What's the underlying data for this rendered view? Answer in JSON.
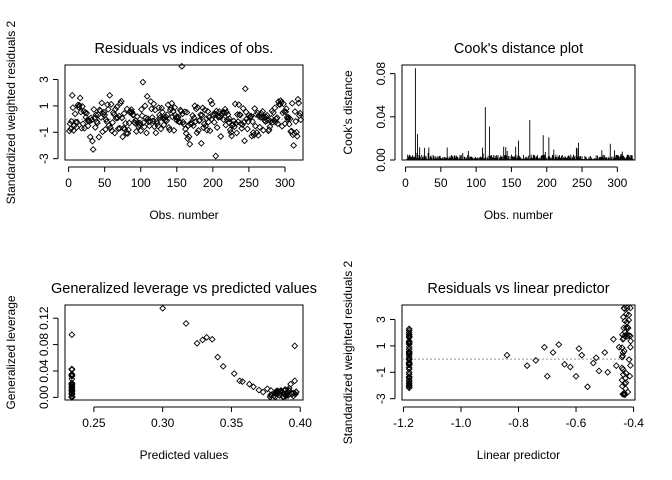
{
  "chart_data": [
    {
      "type": "scatter",
      "title": "Residuals vs indices of obs.",
      "xlabel": "Obs. number",
      "ylabel": "Standardized weighted residuals 2",
      "xlim": [
        -5,
        325
      ],
      "ylim": [
        -3.1,
        4.1
      ],
      "xticks": [
        0,
        50,
        100,
        150,
        200,
        250,
        300
      ],
      "yticks": [
        -3,
        -1,
        1,
        3
      ],
      "hline": 0,
      "n_points": 322,
      "sample_points": [
        [
          1,
          -0.9
        ],
        [
          5,
          1.8
        ],
        [
          9,
          0.4
        ],
        [
          16,
          1.6
        ],
        [
          34,
          -2.3
        ],
        [
          57,
          1.8
        ],
        [
          103,
          2.8
        ],
        [
          157,
          4.0
        ],
        [
          168,
          -1.9
        ],
        [
          204,
          -2.8
        ],
        [
          245,
          2.3
        ],
        [
          294,
          1.4
        ],
        [
          312,
          -2.0
        ],
        [
          318,
          1.5
        ]
      ],
      "grid": false,
      "legend": "none"
    },
    {
      "type": "bar",
      "title": "Cook's distance plot",
      "xlabel": "Obs. number",
      "ylabel": "Cook's distance",
      "xlim": [
        -5,
        325
      ],
      "ylim": [
        0,
        0.088
      ],
      "xticks": [
        0,
        50,
        100,
        150,
        200,
        250,
        300
      ],
      "yticks": [
        0.0,
        0.04,
        0.08
      ],
      "ytick_labels": [
        "0.00",
        "0.04",
        "0.08"
      ],
      "notable_values": [
        [
          14,
          0.085
        ],
        [
          17,
          0.024
        ],
        [
          113,
          0.049
        ],
        [
          119,
          0.031
        ],
        [
          142,
          0.012
        ],
        [
          160,
          0.018
        ],
        [
          176,
          0.037
        ],
        [
          195,
          0.023
        ],
        [
          203,
          0.021
        ],
        [
          245,
          0.016
        ],
        [
          290,
          0.015
        ]
      ],
      "baseline_level": 0.002,
      "grid": false,
      "legend": "none"
    },
    {
      "type": "scatter",
      "title": "Generalized leverage vs predicted values",
      "xlabel": "Predicted values",
      "ylabel": "Generalized leverage",
      "xlim": [
        0.229,
        0.402
      ],
      "ylim": [
        -0.004,
        0.14
      ],
      "xticks": [
        0.25,
        0.3,
        0.35,
        0.4
      ],
      "xtick_labels": [
        "0.25",
        "0.30",
        "0.35",
        "0.40"
      ],
      "yticks": [
        0.0,
        0.04,
        0.08,
        0.12
      ],
      "ytick_labels": [
        "0.00",
        "0.04",
        "0.08",
        "0.12"
      ],
      "points": [
        [
          0.3,
          0.135
        ],
        [
          0.317,
          0.112
        ],
        [
          0.325,
          0.082
        ],
        [
          0.329,
          0.087
        ],
        [
          0.332,
          0.091
        ],
        [
          0.336,
          0.088
        ],
        [
          0.34,
          0.061
        ],
        [
          0.344,
          0.047
        ],
        [
          0.352,
          0.036
        ],
        [
          0.356,
          0.025
        ],
        [
          0.358,
          0.024
        ],
        [
          0.363,
          0.02
        ],
        [
          0.366,
          0.016
        ],
        [
          0.37,
          0.011
        ],
        [
          0.373,
          0.008
        ],
        [
          0.376,
          0.013
        ],
        [
          0.379,
          0.004
        ],
        [
          0.381,
          0.002
        ],
        [
          0.383,
          0.006
        ],
        [
          0.385,
          0.003
        ],
        [
          0.386,
          0.009
        ],
        [
          0.388,
          0.001
        ],
        [
          0.389,
          0.012
        ],
        [
          0.39,
          0.005
        ],
        [
          0.391,
          0.003
        ],
        [
          0.392,
          0.014
        ],
        [
          0.393,
          0.02
        ],
        [
          0.394,
          0.005
        ],
        [
          0.395,
          0.002
        ],
        [
          0.396,
          0.078
        ],
        [
          0.396,
          0.025
        ],
        [
          0.397,
          0.008
        ]
      ],
      "cluster": {
        "x": 0.234,
        "y_range": [
          0.0,
          0.045
        ],
        "outlier": [
          0.234,
          0.095
        ]
      },
      "grid": false,
      "legend": "none"
    },
    {
      "type": "scatter",
      "title": "Residuals vs linear predictor",
      "xlabel": "Linear predictor",
      "ylabel": "Standardized weighted residuals 2",
      "xlim": [
        -1.205,
        -0.395
      ],
      "ylim": [
        -3.1,
        4.1
      ],
      "xticks": [
        -1.2,
        -1.0,
        -0.8,
        -0.6,
        -0.4
      ],
      "xtick_labels": [
        "-1.2",
        "-1.0",
        "-0.8",
        "-0.6",
        "-0.4"
      ],
      "yticks": [
        -3,
        -1,
        1,
        3
      ],
      "hline": 0,
      "points": [
        [
          -0.84,
          0.3
        ],
        [
          -0.77,
          -0.5
        ],
        [
          -0.74,
          -0.1
        ],
        [
          -0.71,
          0.9
        ],
        [
          -0.7,
          -1.3
        ],
        [
          -0.68,
          0.5
        ],
        [
          -0.66,
          1.1
        ],
        [
          -0.64,
          -0.4
        ],
        [
          -0.62,
          -0.6
        ],
        [
          -0.6,
          -1.3
        ],
        [
          -0.59,
          0.8
        ],
        [
          -0.58,
          0.3
        ],
        [
          -0.56,
          -2.1
        ],
        [
          -0.54,
          -0.3
        ],
        [
          -0.53,
          0.1
        ],
        [
          -0.52,
          -0.9
        ],
        [
          -0.5,
          0.5
        ],
        [
          -0.49,
          -1.0
        ],
        [
          -0.47,
          1.5
        ],
        [
          -0.46,
          -0.5
        ],
        [
          -0.45,
          0.9
        ],
        [
          -0.44,
          -1.6
        ],
        [
          -0.43,
          2.9
        ],
        [
          -0.42,
          -2.5
        ]
      ],
      "clusters": [
        {
          "x": -1.18,
          "y_range": [
            -2.2,
            2.3
          ]
        },
        {
          "x": -0.41,
          "y_range": [
            -2.8,
            4.0
          ]
        }
      ],
      "grid": false,
      "legend": "none"
    }
  ]
}
